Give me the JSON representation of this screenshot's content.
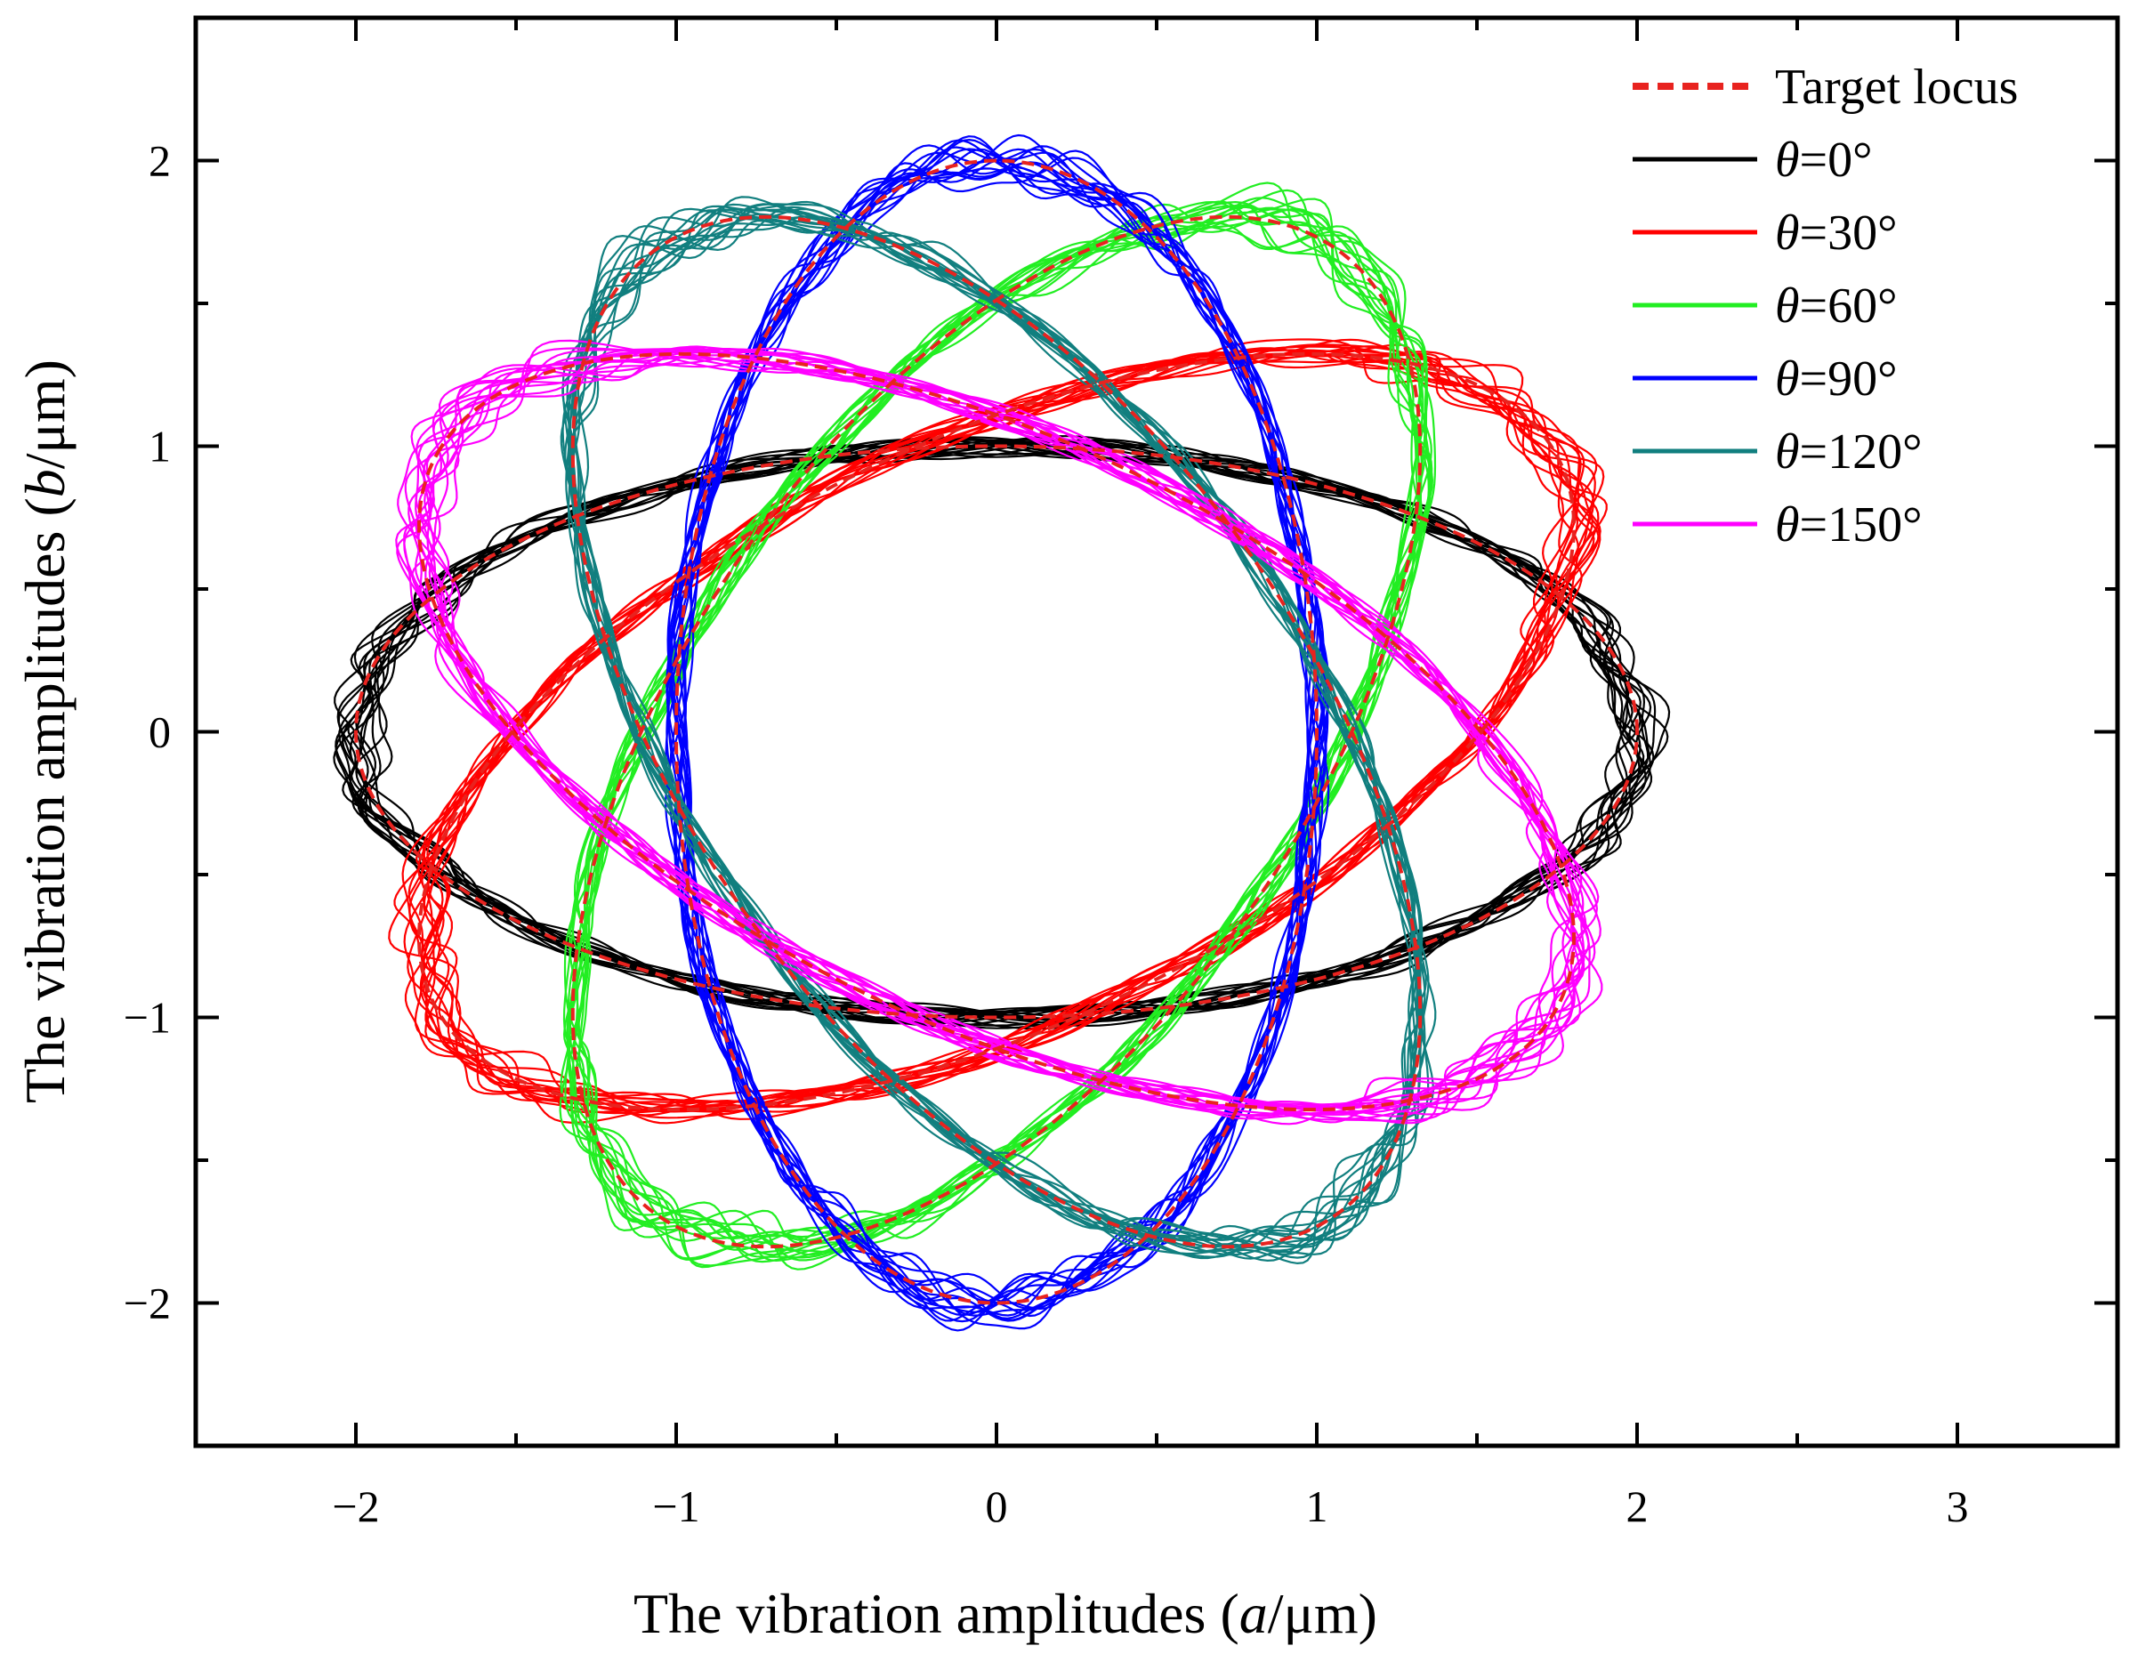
{
  "chart_data": {
    "type": "line",
    "title": "",
    "xlabel": {
      "pre": "The vibration amplitudes (",
      "var": "a",
      "post": "/μm)"
    },
    "ylabel": {
      "pre": "The vibration amplitudes (",
      "var": "b",
      "post": "/μm)"
    },
    "xlim": [
      -2.5,
      3.5
    ],
    "ylim": [
      -2.5,
      2.5
    ],
    "xticks": [
      -2,
      -1,
      0,
      1,
      2,
      3
    ],
    "xtick_labels": [
      "−2",
      "−1",
      "0",
      "1",
      "2",
      "3"
    ],
    "yticks": [
      -2,
      -1,
      0,
      1,
      2
    ],
    "ytick_labels": [
      "−2",
      "−1",
      "0",
      "1",
      "2"
    ],
    "grid": false,
    "legend_position": "top-right",
    "target": {
      "label": "Target locus",
      "color": "#e8231f",
      "dashed": true,
      "ellipse": {
        "major": 2.0,
        "minor": 1.0
      }
    },
    "series": [
      {
        "label_var": "θ",
        "label_value": "=0°",
        "theta": 0,
        "color": "#000000"
      },
      {
        "label_var": "θ",
        "label_value": "=30°",
        "theta": 30,
        "color": "#ff0000"
      },
      {
        "label_var": "θ",
        "label_value": "=60°",
        "theta": 60,
        "color": "#22ee22"
      },
      {
        "label_var": "θ",
        "label_value": "=90°",
        "theta": 90,
        "color": "#0000ff"
      },
      {
        "label_var": "θ",
        "label_value": "=120°",
        "theta": 120,
        "color": "#117f7f"
      },
      {
        "label_var": "θ",
        "label_value": "=150°",
        "theta": 150,
        "color": "#ff00ff"
      }
    ]
  }
}
